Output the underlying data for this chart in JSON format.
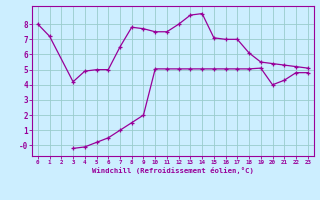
{
  "xlabel": "Windchill (Refroidissement éolien,°C)",
  "line1_x": [
    0,
    1,
    3,
    4,
    5,
    6,
    7,
    8,
    9,
    10,
    11,
    12,
    13,
    14,
    15,
    16,
    17,
    18,
    19,
    20,
    21,
    22,
    23
  ],
  "line1_y": [
    8.0,
    7.2,
    4.2,
    4.9,
    5.0,
    5.0,
    6.5,
    7.8,
    7.7,
    7.5,
    7.5,
    8.0,
    8.6,
    8.7,
    7.1,
    7.0,
    7.0,
    6.1,
    5.5,
    5.4,
    5.3,
    5.2,
    5.1
  ],
  "line2_x": [
    3,
    4,
    5,
    6,
    7,
    8,
    9,
    10,
    11,
    12,
    13,
    14,
    15,
    16,
    17,
    18,
    19,
    20,
    21,
    22,
    23
  ],
  "line2_y": [
    -0.2,
    -0.1,
    0.2,
    0.5,
    1.0,
    1.5,
    2.0,
    5.05,
    5.05,
    5.05,
    5.05,
    5.05,
    5.05,
    5.05,
    5.05,
    5.05,
    5.1,
    4.0,
    4.3,
    4.8,
    4.8
  ],
  "line_color": "#990099",
  "bg_color": "#cceeff",
  "grid_color": "#99cccc",
  "axis_color": "#990099",
  "ylim": [
    -0.7,
    9.2
  ],
  "xlim": [
    -0.5,
    23.5
  ],
  "yticks": [
    0,
    1,
    2,
    3,
    4,
    5,
    6,
    7,
    8
  ],
  "ytick_labels": [
    "-0",
    "1",
    "2",
    "3",
    "4",
    "5",
    "6",
    "7",
    "8"
  ],
  "xticks": [
    0,
    1,
    2,
    3,
    4,
    5,
    6,
    7,
    8,
    9,
    10,
    11,
    12,
    13,
    14,
    15,
    16,
    17,
    18,
    19,
    20,
    21,
    22,
    23
  ],
  "marker": "+"
}
